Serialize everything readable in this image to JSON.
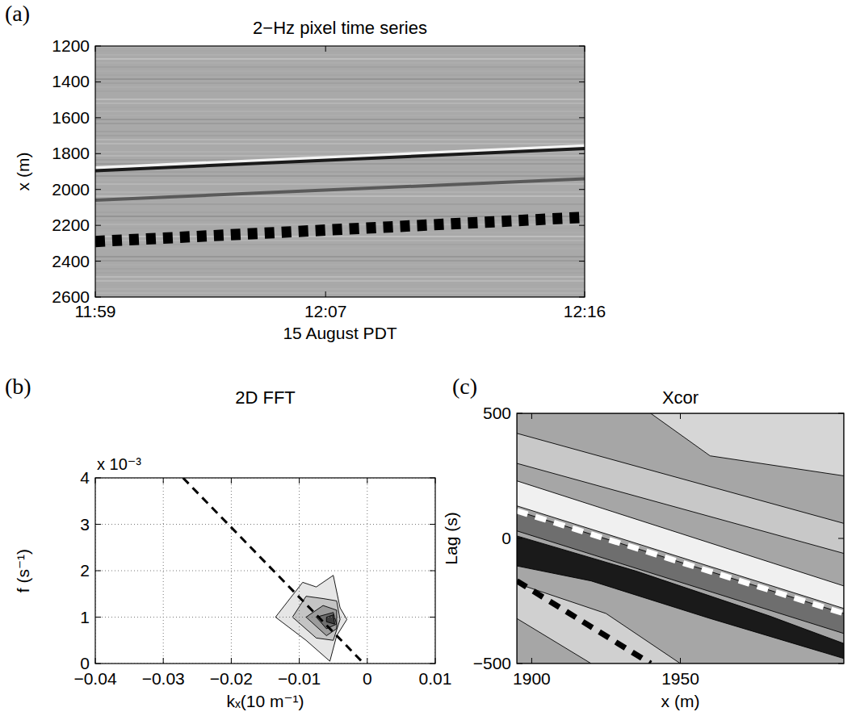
{
  "chart_data": [
    {
      "type": "line",
      "panel": "(a)",
      "title": "2−Hz pixel time series",
      "x_label": "15 August PDT",
      "y_label": "x (m)",
      "xlim": [
        719,
        736
      ],
      "xticks": [
        {
          "value": 719,
          "label": "11:59"
        },
        {
          "value": 727,
          "label": "12:07"
        },
        {
          "value": 736,
          "label": "12:16"
        }
      ],
      "ylim": [
        2600,
        1200
      ],
      "yticks": [
        1200,
        1400,
        1600,
        1800,
        2000,
        2200,
        2400,
        2600
      ],
      "grid": false,
      "series": [
        {
          "color": "#f4f4f4",
          "line_style": "solid",
          "x": [
            719,
            736
          ],
          "values": [
            1880,
            1757
          ]
        },
        {
          "color": "#1a1a1a",
          "line_style": "solid",
          "x": [
            719,
            736
          ],
          "values": [
            1895,
            1772
          ]
        },
        {
          "color": "#5a5a5a",
          "line_style": "solid",
          "x": [
            719,
            736
          ],
          "values": [
            2060,
            1940
          ]
        },
        {
          "color": "#000000",
          "line_style": "dashed",
          "x": [
            719,
            736
          ],
          "values": [
            2290,
            2155
          ]
        }
      ]
    },
    {
      "type": "contour",
      "panel": "(b)",
      "title": "2D FFT",
      "x_label": "kₓ(10 m⁻¹)",
      "y_label": "f (s⁻¹)",
      "y_multiplier": "x 10⁻³",
      "xlim": [
        -0.04,
        0.01
      ],
      "xticks": [
        {
          "value": -0.04,
          "label": "−0.04"
        },
        {
          "value": -0.03,
          "label": "−0.03"
        },
        {
          "value": -0.02,
          "label": "−0.02"
        },
        {
          "value": -0.01,
          "label": "−0.01"
        },
        0,
        0.01
      ],
      "ylim": [
        0,
        4
      ],
      "yticks": [
        0,
        1,
        2,
        3,
        4
      ],
      "grid": true,
      "contours": [
        {
          "color": "#e6e6e6",
          "points": [
            [
              -0.0135,
              1.0
            ],
            [
              -0.0095,
              1.75
            ],
            [
              -0.0075,
              1.65
            ],
            [
              -0.005,
              1.9
            ],
            [
              -0.004,
              1.2
            ],
            [
              -0.003,
              0.95
            ],
            [
              -0.0045,
              0.6
            ],
            [
              -0.0055,
              0.05
            ],
            [
              -0.009,
              0.5
            ]
          ]
        },
        {
          "color": "#c4c4c4",
          "points": [
            [
              -0.011,
              1.0
            ],
            [
              -0.009,
              1.45
            ],
            [
              -0.0065,
              1.4
            ],
            [
              -0.0045,
              1.35
            ],
            [
              -0.004,
              0.95
            ],
            [
              -0.005,
              0.5
            ],
            [
              -0.0075,
              0.55
            ]
          ]
        },
        {
          "color": "#9c9c9c",
          "points": [
            [
              -0.009,
              1.0
            ],
            [
              -0.0065,
              1.25
            ],
            [
              -0.0045,
              1.15
            ],
            [
              -0.0045,
              0.75
            ],
            [
              -0.006,
              0.6
            ]
          ]
        },
        {
          "color": "#6e6e6e",
          "points": [
            [
              -0.0075,
              1.0
            ],
            [
              -0.005,
              1.1
            ],
            [
              -0.0045,
              0.85
            ],
            [
              -0.006,
              0.75
            ]
          ]
        },
        {
          "color": "#3c3c3c",
          "points": [
            [
              -0.006,
              1.0
            ],
            [
              -0.005,
              1.05
            ],
            [
              -0.0048,
              0.85
            ],
            [
              -0.006,
              0.9
            ]
          ]
        }
      ],
      "series": [
        {
          "color": "#000000",
          "line_style": "dashed",
          "x": [
            -0.0271,
            -0.0005
          ],
          "values": [
            4,
            0
          ]
        }
      ]
    },
    {
      "type": "contour",
      "panel": "(c)",
      "title": "Xcor",
      "x_label": "x (m)",
      "y_label": "Lag (s)",
      "xlim": [
        1895,
        2005
      ],
      "xticks": [
        1900,
        1950
      ],
      "ylim": [
        -500,
        500
      ],
      "yticks": [
        {
          "value": -500,
          "label": "−500"
        },
        0,
        500
      ],
      "grid": false,
      "contours": [
        {
          "color": "#a6a6a6",
          "points": [
            [
              1895,
              500
            ],
            [
              2005,
              500
            ],
            [
              2005,
              -500
            ],
            [
              1895,
              -500
            ]
          ]
        },
        {
          "color": "#d6d6d6",
          "points": [
            [
              1940,
              500
            ],
            [
              2005,
              500
            ],
            [
              2005,
              250
            ],
            [
              1960,
              330
            ]
          ]
        },
        {
          "color": "#c8c8c8",
          "points": [
            [
              1895,
              420
            ],
            [
              2005,
              60
            ],
            [
              2005,
              -60
            ],
            [
              1895,
              300
            ]
          ]
        },
        {
          "color": "#f0f0f0",
          "points": [
            [
              1895,
              230
            ],
            [
              2005,
              -190
            ],
            [
              2005,
              -280
            ],
            [
              1895,
              130
            ]
          ]
        },
        {
          "color": "#6e6e6e",
          "points": [
            [
              1895,
              110
            ],
            [
              2005,
              -300
            ],
            [
              2005,
              -380
            ],
            [
              1895,
              30
            ]
          ]
        },
        {
          "color": "#1a1a1a",
          "points": [
            [
              1895,
              10
            ],
            [
              1935,
              -130
            ],
            [
              1980,
              -310
            ],
            [
              2005,
              -420
            ],
            [
              2005,
              -480
            ],
            [
              1960,
              -320
            ],
            [
              1920,
              -170
            ],
            [
              1895,
              -110
            ]
          ]
        },
        {
          "color": "#d0d0d0",
          "points": [
            [
              1895,
              -180
            ],
            [
              1925,
              -300
            ],
            [
              1950,
              -500
            ],
            [
              1920,
              -500
            ],
            [
              1895,
              -320
            ]
          ]
        }
      ],
      "series": [
        {
          "color": "#ffffff",
          "line_style": "dashed",
          "x": [
            1895,
            2005
          ],
          "values": [
            110,
            -300
          ]
        },
        {
          "color": "#000000",
          "line_style": "dashed",
          "x": [
            1895,
            1940
          ],
          "values": [
            -170,
            -500
          ]
        }
      ]
    }
  ]
}
